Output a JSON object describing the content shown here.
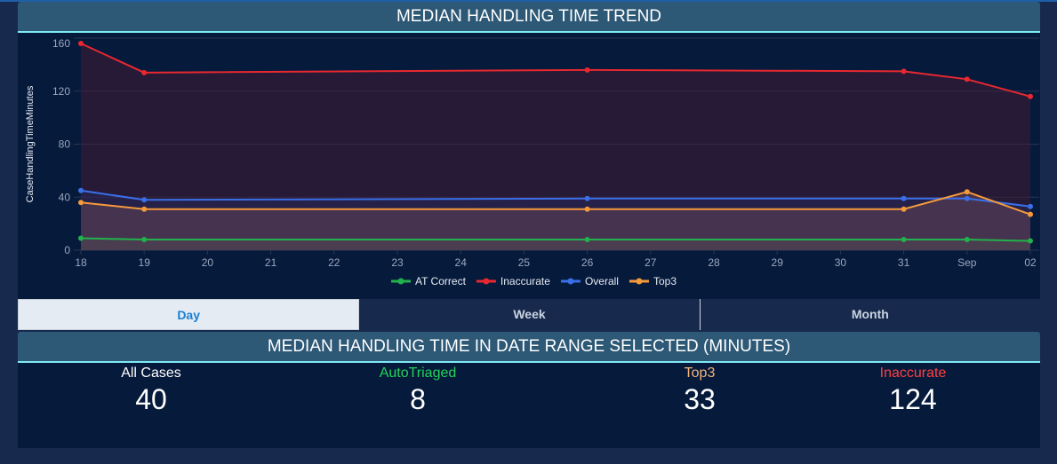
{
  "header": {
    "title": "MEDIAN HANDLING TIME TREND"
  },
  "chart_data": {
    "type": "line",
    "title": "",
    "ylabel": "CaseHandlingTimeMinutes",
    "xlabel": "",
    "ylim": [
      0,
      160
    ],
    "yticks": [
      0,
      40,
      80,
      120,
      160
    ],
    "x_ticks": [
      "18",
      "19",
      "20",
      "21",
      "22",
      "23",
      "24",
      "25",
      "26",
      "27",
      "28",
      "29",
      "30",
      "31",
      "Sep",
      "02"
    ],
    "x": [
      "18",
      "19",
      "26",
      "31",
      "Sep",
      "02"
    ],
    "grid": true,
    "legend_position": "bottom",
    "series": [
      {
        "name": "AT Correct",
        "color": "#22b14c",
        "values": [
          9,
          8,
          8,
          8,
          8,
          7
        ]
      },
      {
        "name": "Inaccurate",
        "color": "#e8282f",
        "values": [
          156,
          134,
          136,
          135,
          129,
          116
        ]
      },
      {
        "name": "Overall",
        "color": "#3a6fe8",
        "values": [
          45,
          38,
          39,
          39,
          39,
          33
        ]
      },
      {
        "name": "Top3",
        "color": "#f59a3b",
        "values": [
          36,
          31,
          31,
          31,
          44,
          27
        ]
      }
    ]
  },
  "tabs": [
    {
      "label": "Day",
      "active": true
    },
    {
      "label": "Week"
    },
    {
      "label": "Month"
    }
  ],
  "summary": {
    "title": "MEDIAN HANDLING TIME IN DATE RANGE SELECTED (MINUTES)",
    "stats": [
      {
        "label": "All Cases",
        "value": "40",
        "color": "#ffffff"
      },
      {
        "label": "AutoTriaged",
        "value": "8",
        "color": "#22d45a"
      },
      {
        "label": "Top3",
        "value": "33",
        "color": "#f5b57a"
      },
      {
        "label": "Inaccurate",
        "value": "124",
        "color": "#ff4040"
      }
    ]
  }
}
